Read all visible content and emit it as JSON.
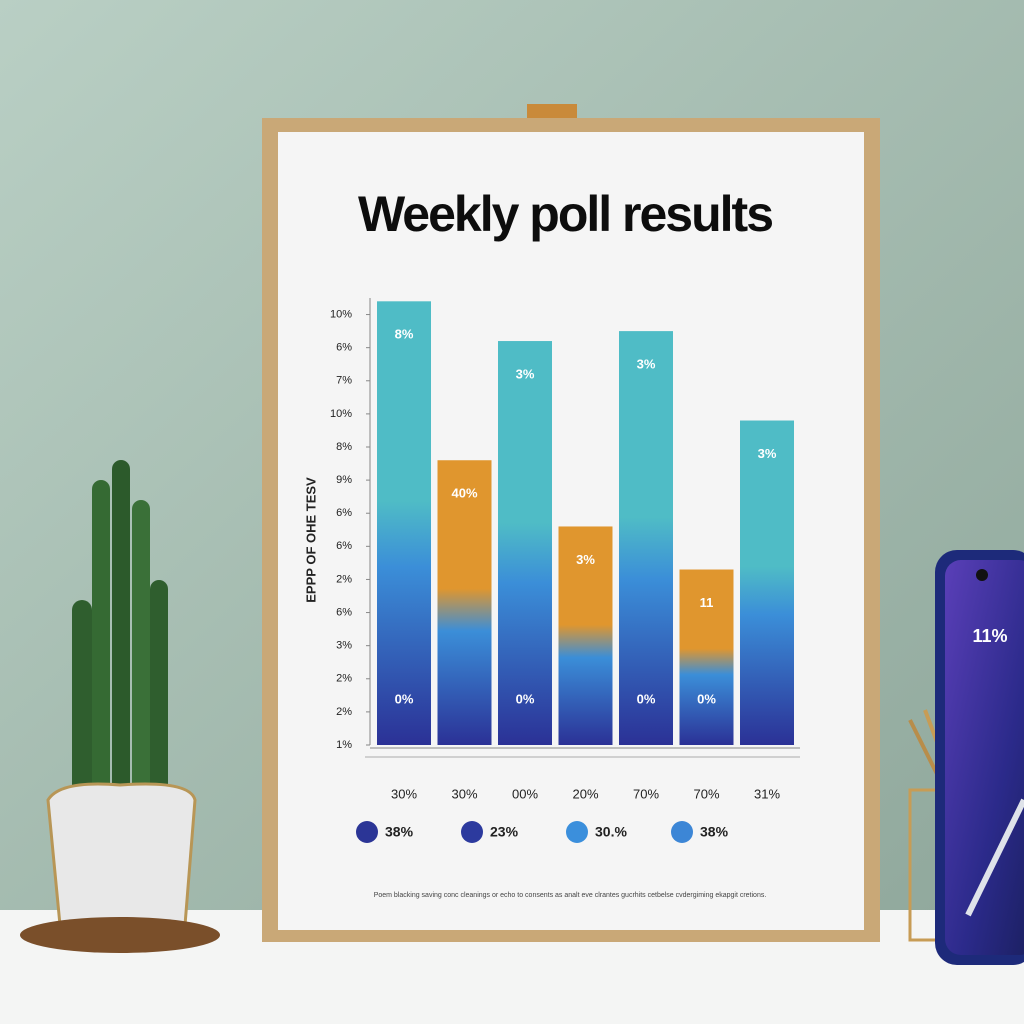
{
  "chart_data": {
    "type": "bar",
    "title": "Weekly poll results",
    "y_label": "EPPP OF OHE TESV",
    "categories": [
      "30%",
      "30%",
      "00%",
      "20%",
      "70%",
      "70%",
      "31%"
    ],
    "values": [
      13.4,
      8.6,
      12.2,
      6.6,
      12.5,
      5.3,
      9.8
    ],
    "colors": [
      "#4fbcc6",
      "#e0962e",
      "#4fbcc6",
      "#e0962e",
      "#4fbcc6",
      "#e0962e",
      "#4fbcc6"
    ],
    "gradient_bottom": "#2b3196",
    "bar_labels": [
      "8%",
      "40%",
      "3%",
      "3%",
      "3%",
      "11",
      "3%"
    ],
    "base_labels": [
      "0%",
      null,
      "0%",
      null,
      "0%",
      "0%",
      null
    ],
    "ylim": [
      0,
      13.5
    ],
    "yticks": [
      {
        "value": 0,
        "label": "1%"
      },
      {
        "value": 1,
        "label": "2%"
      },
      {
        "value": 2,
        "label": "2%"
      },
      {
        "value": 3,
        "label": "3%"
      },
      {
        "value": 4,
        "label": "6%"
      },
      {
        "value": 5,
        "label": "2%"
      },
      {
        "value": 6,
        "label": "6%"
      },
      {
        "value": 7,
        "label": "6%"
      },
      {
        "value": 8,
        "label": "9%"
      },
      {
        "value": 9,
        "label": "8%"
      },
      {
        "value": 10,
        "label": "10%"
      },
      {
        "value": 11,
        "label": "7%"
      },
      {
        "value": 12,
        "label": "6%"
      },
      {
        "value": 13,
        "label": "10%"
      }
    ],
    "legend": [
      {
        "label": "38%",
        "color": "#2b3596"
      },
      {
        "label": "23%",
        "color": "#2c3a9e"
      },
      {
        "label": "30.%",
        "color": "#3b8fdc"
      },
      {
        "label": "38%",
        "color": "#3c86d6"
      }
    ],
    "footnote": "Poem blacking saving conc cleanings or echo to consents as analt eve clrantes gucrhits cetbelse cvdergiming ekapgit cretions.",
    "phone_text": "11%"
  }
}
